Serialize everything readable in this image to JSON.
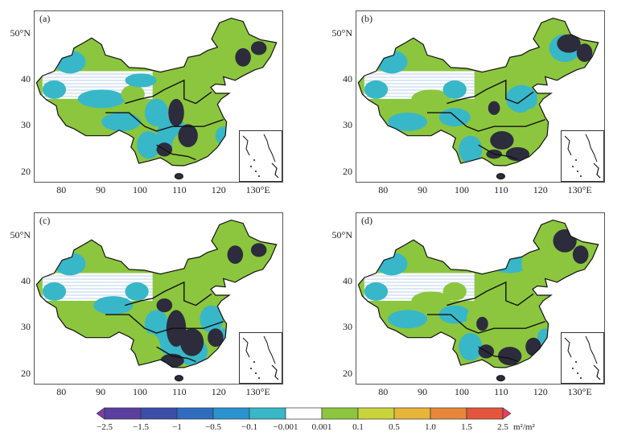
{
  "panels": [
    {
      "label": "(a)"
    },
    {
      "label": "(b)"
    },
    {
      "label": "(c)"
    },
    {
      "label": "(d)"
    }
  ],
  "axes": {
    "x_ticks": [
      "80",
      "90",
      "100",
      "110",
      "120",
      "130°E"
    ],
    "y_ticks": [
      "50°N",
      "40",
      "30",
      "20"
    ]
  },
  "colorbar": {
    "labels": [
      "−2.5",
      "−1.5",
      "−1",
      "−0.5",
      "−0.1",
      "−0.001",
      "0.001",
      "0.1",
      "0.5",
      "1.0",
      "1.5",
      "2.5"
    ],
    "unit": "m²/m²",
    "colors": [
      "#5a3fa0",
      "#3b4fa8",
      "#2f6cc0",
      "#2b93d0",
      "#38b7c8",
      "#ffffff",
      "#8cc63e",
      "#c9d43a",
      "#e6b53a",
      "#e8873a",
      "#e5553e"
    ]
  },
  "map_colors": {
    "green": "#8cc63e",
    "teal": "#38b7c8",
    "dark": "#2c2c3c",
    "border": "#111111"
  }
}
